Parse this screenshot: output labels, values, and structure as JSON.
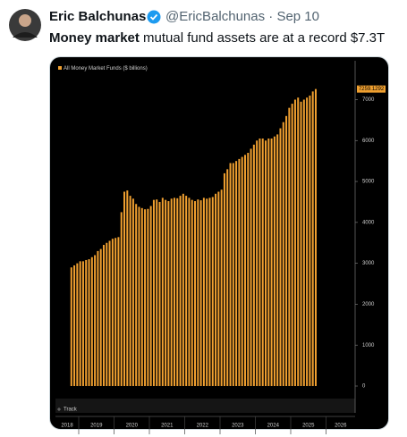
{
  "tweet": {
    "name": "Eric Balchunas",
    "meta": "@EricBalchunas · Sep 10",
    "text_bold": "Money market",
    "text": " mutual fund assets are at a record $7.3T"
  },
  "chart_data": {
    "type": "bar",
    "legend_label": "All Money Market Funds ($ billions)",
    "track_label": "Track",
    "color": "#f0a030",
    "year_labels": [
      "2018",
      "2019",
      "2020",
      "2021",
      "2022",
      "2023",
      "2024",
      "2025",
      "2026"
    ],
    "categories": [
      null,
      null,
      null,
      null,
      null,
      null,
      null,
      null,
      null,
      null,
      null,
      null,
      null,
      null,
      null,
      null,
      null,
      null,
      null,
      null,
      null,
      null,
      null,
      null,
      null,
      null,
      null,
      null,
      null,
      null,
      null,
      null,
      null,
      null,
      null,
      null,
      null,
      null,
      null,
      null,
      null,
      null,
      null,
      null,
      null,
      null,
      null,
      null,
      null,
      null,
      null,
      null,
      null,
      null,
      null,
      null,
      null,
      null,
      null,
      null,
      null,
      null,
      null,
      null,
      null,
      null,
      null,
      null,
      null,
      null,
      null,
      null,
      null,
      null,
      null,
      null,
      null,
      null,
      null,
      null,
      null,
      null,
      null,
      null
    ],
    "values": [
      2900,
      2950,
      3000,
      3050,
      3050,
      3080,
      3100,
      3150,
      3200,
      3300,
      3350,
      3450,
      3500,
      3550,
      3600,
      3620,
      3640,
      4250,
      4750,
      4780,
      4650,
      4580,
      4450,
      4380,
      4350,
      4320,
      4330,
      4400,
      4550,
      4560,
      4500,
      4600,
      4550,
      4520,
      4580,
      4600,
      4590,
      4650,
      4700,
      4650,
      4600,
      4550,
      4520,
      4560,
      4540,
      4600,
      4580,
      4600,
      4620,
      4700,
      4750,
      4800,
      5200,
      5300,
      5450,
      5450,
      5500,
      5550,
      5600,
      5650,
      5700,
      5800,
      5900,
      6000,
      6050,
      6050,
      6000,
      6050,
      6050,
      6100,
      6150,
      6300,
      6450,
      6600,
      6800,
      6900,
      7000,
      7050,
      6950,
      7000,
      7050,
      7100,
      7200,
      7259.1292
    ],
    "value_labels": [
      null,
      null,
      null,
      null,
      null,
      null,
      null,
      null,
      null,
      null,
      null,
      null,
      null,
      null,
      null,
      null,
      null,
      null,
      null,
      null,
      null,
      null,
      null,
      null,
      null,
      null,
      null,
      null,
      null,
      null,
      null,
      null,
      null,
      null,
      null,
      null,
      null,
      null,
      null,
      null,
      null,
      null,
      null,
      null,
      null,
      null,
      null,
      null,
      null,
      null,
      null,
      null,
      null,
      null,
      null,
      null,
      null,
      null,
      null,
      null,
      null,
      null,
      null,
      null,
      null,
      null,
      null,
      null,
      null,
      null,
      null,
      null,
      null,
      null,
      null,
      null,
      null,
      null,
      null,
      null,
      null,
      null,
      null,
      "7259.1292"
    ],
    "ylim": [
      0,
      7950
    ],
    "yticks": [
      0,
      1000,
      2000,
      3000,
      4000,
      5000,
      6000,
      7000
    ]
  }
}
